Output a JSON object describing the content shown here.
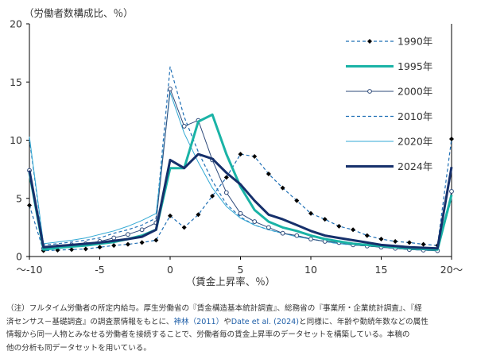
{
  "chart_data": {
    "type": "line",
    "ylabel": "（労働者数構成比、％）",
    "xlabel": "（賃金上昇率、％）",
    "xlim": [
      -10,
      20
    ],
    "ylim": [
      0,
      20
    ],
    "x_ticks": [
      -10,
      -5,
      0,
      5,
      10,
      15,
      20
    ],
    "x_tick_labels": [
      "～-10",
      "-5",
      "0",
      "5",
      "10",
      "15",
      "20～"
    ],
    "y_ticks": [
      0,
      5,
      10,
      15,
      20
    ],
    "y_tick_labels": [
      "0",
      "5",
      "10",
      "15",
      "20"
    ],
    "grid": false,
    "legend_position": "top-right",
    "x": [
      -10,
      -9,
      -8,
      -7,
      -6,
      -5,
      -4,
      -3,
      -2,
      -1,
      0,
      1,
      2,
      3,
      4,
      5,
      6,
      7,
      8,
      9,
      10,
      11,
      12,
      13,
      14,
      15,
      16,
      17,
      18,
      19,
      20
    ],
    "series": [
      {
        "name": "1990年",
        "color": "#1f6fb5",
        "style": "dashed-diamond",
        "values": [
          4.4,
          0.5,
          0.55,
          0.6,
          0.65,
          0.8,
          0.95,
          1.05,
          1.2,
          1.4,
          3.5,
          2.5,
          3.6,
          5.2,
          6.8,
          8.8,
          8.6,
          7.1,
          5.9,
          4.8,
          3.7,
          3.2,
          2.6,
          2.3,
          1.8,
          1.5,
          1.3,
          1.2,
          1.05,
          0.95,
          10.1
        ]
      },
      {
        "name": "1995年",
        "color": "#1ab3a6",
        "style": "thick",
        "values": [
          7.2,
          0.6,
          0.75,
          0.85,
          0.95,
          1.1,
          1.25,
          1.5,
          1.8,
          2.3,
          7.6,
          7.6,
          11.6,
          12.2,
          8.8,
          6.0,
          4.0,
          3.0,
          2.5,
          2.2,
          1.8,
          1.5,
          1.3,
          1.1,
          1.0,
          0.9,
          0.8,
          0.7,
          0.65,
          0.6,
          5.3
        ]
      },
      {
        "name": "2000年",
        "color": "#2e4a7a",
        "style": "thin-circle",
        "values": [
          7.4,
          0.7,
          0.85,
          1.0,
          1.1,
          1.3,
          1.6,
          1.9,
          2.3,
          2.9,
          14.4,
          11.2,
          11.7,
          8.3,
          5.5,
          3.7,
          3.0,
          2.5,
          2.0,
          1.8,
          1.5,
          1.3,
          1.2,
          1.0,
          0.9,
          0.8,
          0.7,
          0.6,
          0.55,
          0.5,
          5.6
        ]
      },
      {
        "name": "2010年",
        "color": "#1f6fb5",
        "style": "dashed",
        "values": [
          10.1,
          1.0,
          1.1,
          1.25,
          1.4,
          1.6,
          2.0,
          2.3,
          2.7,
          3.3,
          16.3,
          12.0,
          9.0,
          6.5,
          4.5,
          3.4,
          2.7,
          2.3,
          2.0,
          1.8,
          1.5,
          1.3,
          1.1,
          1.0,
          0.9,
          0.8,
          0.7,
          0.6,
          0.55,
          0.5,
          5.0
        ]
      },
      {
        "name": "2020年",
        "color": "#32a9d4",
        "style": "thin",
        "values": [
          10.3,
          1.1,
          1.25,
          1.4,
          1.6,
          1.9,
          2.2,
          2.6,
          3.1,
          3.7,
          14.1,
          10.6,
          8.1,
          5.9,
          4.3,
          3.3,
          2.7,
          2.3,
          2.0,
          1.7,
          1.5,
          1.3,
          1.1,
          1.0,
          0.9,
          0.8,
          0.7,
          0.6,
          0.55,
          0.5,
          5.2
        ]
      },
      {
        "name": "2024年",
        "color": "#16306b",
        "style": "thick",
        "values": [
          7.4,
          0.8,
          0.9,
          1.0,
          1.1,
          1.2,
          1.35,
          1.5,
          1.7,
          2.3,
          8.3,
          7.6,
          8.8,
          8.4,
          7.2,
          6.2,
          4.8,
          3.6,
          3.2,
          2.7,
          2.2,
          1.8,
          1.6,
          1.4,
          1.2,
          1.0,
          0.9,
          0.8,
          0.75,
          0.7,
          7.7
        ]
      }
    ]
  },
  "note": {
    "prefix": "（注）",
    "line1": "フルタイム労働者の所定内給与。厚生労働省の『賃金構造基本統計調査』、総務省の『事業所・企業統計調査』、『経",
    "line2a": "済センサス－基礎調査』の調査票情報をもとに、",
    "ref1": "神林（2011）",
    "line2b": "や",
    "ref2": "Date et al. (2024)",
    "line2c": "と同様に、年齢や勤続年数などの属性",
    "line3": "情報から同一人物とみなせる労働者を接続することで、労働者毎の賃金上昇率のデータセットを構築している。本稿の",
    "line4": "他の分析も同データセットを用いている。"
  }
}
